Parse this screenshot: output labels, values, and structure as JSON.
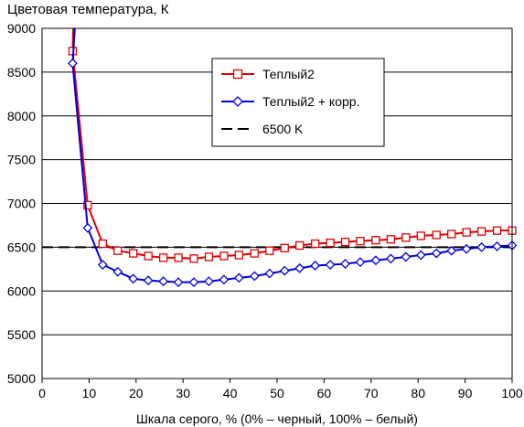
{
  "chart_data": {
    "type": "line",
    "title": "Цветовая температура, К",
    "xlabel": "Шкала серого, % (0% – черный, 100% – белый)",
    "ylabel": "",
    "xlim": [
      0,
      100
    ],
    "ylim": [
      5000,
      9000
    ],
    "xticks": [
      0,
      10,
      20,
      30,
      40,
      50,
      60,
      70,
      80,
      90,
      100
    ],
    "yticks": [
      5000,
      5500,
      6000,
      6500,
      7000,
      7500,
      8000,
      8500,
      9000
    ],
    "grid": "horizontal",
    "legend_position": "top-center",
    "series": [
      {
        "name": "Теплый2",
        "color": "#e00000",
        "marker": "square",
        "x": [
          6.5,
          9.7,
          12.9,
          16.1,
          19.4,
          22.6,
          25.8,
          29.0,
          32.3,
          35.5,
          38.7,
          41.9,
          45.2,
          48.4,
          51.6,
          54.8,
          58.1,
          61.3,
          64.5,
          67.7,
          71.0,
          74.2,
          77.4,
          80.6,
          83.9,
          87.1,
          90.3,
          93.5,
          96.8,
          100.0
        ],
        "values": [
          8740,
          6980,
          6540,
          6460,
          6430,
          6400,
          6380,
          6380,
          6370,
          6390,
          6400,
          6410,
          6430,
          6460,
          6490,
          6520,
          6540,
          6550,
          6560,
          6570,
          6580,
          6590,
          6610,
          6630,
          6640,
          6650,
          6670,
          6680,
          6690,
          6690
        ]
      },
      {
        "name": "Теплый2 + корр.",
        "color": "#0000e0",
        "marker": "diamond",
        "x": [
          6.5,
          9.7,
          12.9,
          16.1,
          19.4,
          22.6,
          25.8,
          29.0,
          32.3,
          35.5,
          38.7,
          41.9,
          45.2,
          48.4,
          51.6,
          54.8,
          58.1,
          61.3,
          64.5,
          67.7,
          71.0,
          74.2,
          77.4,
          80.6,
          83.9,
          87.1,
          90.3,
          93.5,
          96.8,
          100.0
        ],
        "values": [
          8600,
          6720,
          6300,
          6220,
          6140,
          6120,
          6110,
          6100,
          6100,
          6110,
          6130,
          6150,
          6170,
          6200,
          6230,
          6260,
          6290,
          6300,
          6310,
          6330,
          6350,
          6370,
          6390,
          6410,
          6430,
          6460,
          6480,
          6500,
          6510,
          6520
        ]
      },
      {
        "name": "6500 K",
        "color": "#000000",
        "marker": "none",
        "dashed": true,
        "x": [
          0,
          100
        ],
        "values": [
          6500,
          6500
        ]
      }
    ]
  }
}
